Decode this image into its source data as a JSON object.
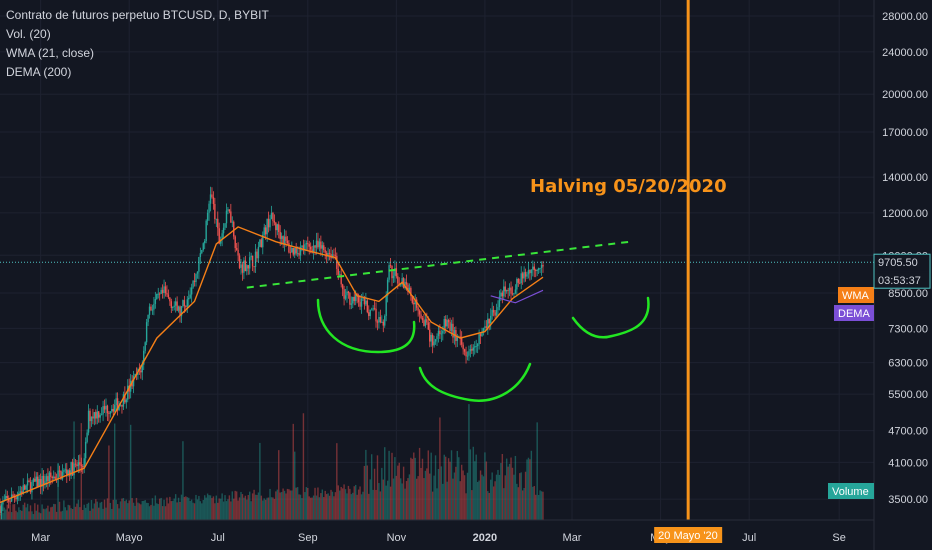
{
  "legend": {
    "title": "Contrato de futuros perpetuo BTCUSD, D, BYBIT",
    "volume": "Vol. (20)",
    "wma": "WMA (21, close)",
    "dema": "DEMA (200)"
  },
  "annotation": {
    "halving": "Halving 05/20/2020"
  },
  "badges": {
    "price": "9705.50",
    "countdown": "03:53:37",
    "wma": "WMA",
    "dema": "DEMA",
    "volume": "Volume",
    "halving_date": "20 Mayo '20"
  },
  "colors": {
    "background": "#131722",
    "up": "#26a69a",
    "down": "#ef5350",
    "wma": "#f57f17",
    "dema": "#7b4fd6",
    "halving": "#f7931a",
    "neckline": "#39e639",
    "shapes": "#22e622",
    "price_line": "#4fc3c3"
  },
  "chart_data": {
    "type": "candlestick",
    "symbol": "BTCUSD",
    "interval": "D",
    "exchange": "BYBIT",
    "scale": "log",
    "ylim": [
      3200,
      30000
    ],
    "y_ticks": [
      28000,
      24000,
      20000,
      17000,
      14000,
      12000,
      10000,
      8500,
      7300,
      6300,
      5500,
      4700,
      4100,
      3500
    ],
    "y_tick_labels": [
      "28000.00",
      "24000.00",
      "20000.00",
      "17000.00",
      "14000.00",
      "12000.00",
      "10000.00",
      "8500.00",
      "7300.00",
      "6300.00",
      "5500.00",
      "4700.00",
      "4100.00",
      "3500.00"
    ],
    "x_ticks": [
      "Mar",
      "Mayo",
      "Jul",
      "Sep",
      "Nov",
      "2020",
      "Mar",
      "May",
      "Jul",
      "Se"
    ],
    "x_tick_dates": [
      "2019-03-01",
      "2019-05-01",
      "2019-07-01",
      "2019-09-01",
      "2019-11-01",
      "2020-01-01",
      "2020-03-01",
      "2020-05-01",
      "2020-07-01",
      "2020-09-01"
    ],
    "x_range": [
      "2019-02-01",
      "2020-09-25"
    ],
    "last_price": 9705.5,
    "halving_date": "2020-05-20",
    "price_path": [
      [
        "2019-02-01",
        3400
      ],
      [
        "2019-02-20",
        3700
      ],
      [
        "2019-03-15",
        3900
      ],
      [
        "2019-03-31",
        4100
      ],
      [
        "2019-04-03",
        5000
      ],
      [
        "2019-04-25",
        5300
      ],
      [
        "2019-05-10",
        6200
      ],
      [
        "2019-05-14",
        7900
      ],
      [
        "2019-05-25",
        8500
      ],
      [
        "2019-06-05",
        7800
      ],
      [
        "2019-06-15",
        9000
      ],
      [
        "2019-06-22",
        10800
      ],
      [
        "2019-06-26",
        13200
      ],
      [
        "2019-07-02",
        10600
      ],
      [
        "2019-07-09",
        12300
      ],
      [
        "2019-07-16",
        9500
      ],
      [
        "2019-07-26",
        9800
      ],
      [
        "2019-08-06",
        11800
      ],
      [
        "2019-08-20",
        10200
      ],
      [
        "2019-09-06",
        10400
      ],
      [
        "2019-09-20",
        10000
      ],
      [
        "2019-09-25",
        8400
      ],
      [
        "2019-10-08",
        8200
      ],
      [
        "2019-10-23",
        7400
      ],
      [
        "2019-10-27",
        9400
      ],
      [
        "2019-11-08",
        8800
      ],
      [
        "2019-11-20",
        7600
      ],
      [
        "2019-11-25",
        6900
      ],
      [
        "2019-12-06",
        7500
      ],
      [
        "2019-12-18",
        6600
      ],
      [
        "2019-12-31",
        7200
      ],
      [
        "2020-01-14",
        8500
      ],
      [
        "2020-01-20",
        8600
      ],
      [
        "2020-01-30",
        9300
      ],
      [
        "2020-02-10",
        9750
      ]
    ],
    "wma_path": [
      [
        "2019-02-01",
        3450
      ],
      [
        "2019-03-31",
        4000
      ],
      [
        "2019-04-20",
        5000
      ],
      [
        "2019-05-20",
        7000
      ],
      [
        "2019-06-15",
        8200
      ],
      [
        "2019-06-30",
        10500
      ],
      [
        "2019-07-15",
        11300
      ],
      [
        "2019-08-10",
        10600
      ],
      [
        "2019-09-01",
        10200
      ],
      [
        "2019-09-20",
        9900
      ],
      [
        "2019-10-05",
        8400
      ],
      [
        "2019-10-20",
        8200
      ],
      [
        "2019-11-05",
        8900
      ],
      [
        "2019-11-25",
        7500
      ],
      [
        "2019-12-15",
        7000
      ],
      [
        "2020-01-01",
        7200
      ],
      [
        "2020-01-20",
        8300
      ],
      [
        "2020-02-10",
        9100
      ]
    ],
    "dema_path": [
      [
        "2020-01-05",
        8400
      ],
      [
        "2020-01-22",
        8150
      ],
      [
        "2020-02-10",
        8600
      ]
    ],
    "volume_bars": "approx. daily volume, spikes around late Oct 2019, Nov 2019 and Jan 2020",
    "annotations": [
      "Halving 05/20/2020"
    ]
  }
}
